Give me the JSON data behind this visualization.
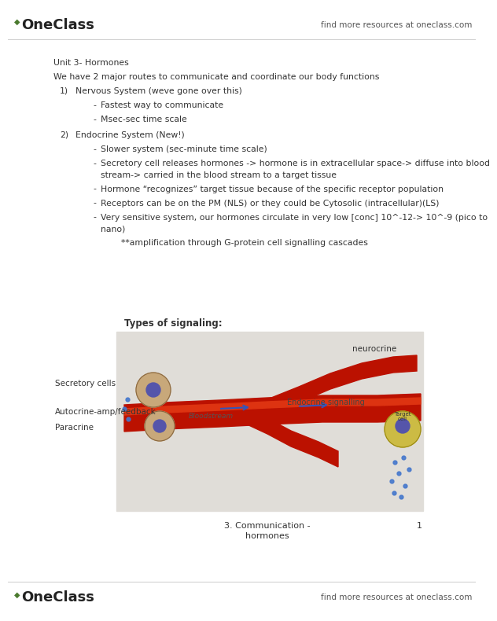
{
  "bg_color": "#ffffff",
  "header_logo_text": "OneClass",
  "header_right_text": "find more resources at oneclass.com",
  "footer_logo_text": "OneClass",
  "footer_right_text": "find more resources at oneclass.com",
  "logo_green": "#4a7a2e",
  "title": "Unit 3- Hormones",
  "intro": "We have 2 major routes to communicate and coordinate our body functions",
  "item1_num": "1)",
  "item1_label": "Nervous System (weve gone over this)",
  "item1_bullets": [
    "Fastest way to communicate",
    "Msec-sec time scale"
  ],
  "item2_num": "2)",
  "item2_label": "Endocrine System (New!)",
  "item2_bullets": [
    "Slower system (sec-minute time scale)",
    "Secretory cell releases hormones -> hormone is in extracellular space-> diffuse into blood",
    "stream-> carried in the blood stream to a target tissue",
    "Hormone “recognizes” target tissue because of the specific receptor population",
    "Receptors can be on the PM (NLS) or they could be Cytosolic (intracellular)(LS)",
    "Very sensitive system, our hormones circulate in very low [conc] 10^-12-> 10^-9 (pico to",
    "nano)",
    "    **amplification through G-protein cell signalling cascades"
  ],
  "diagram_title": "Types of signaling:",
  "diagram_caption_line1": "3. Communication -",
  "diagram_caption_line2": "hormones",
  "diagram_page_num": "1",
  "label_neurocrine": "neurocrine",
  "label_secretory": "Secretory cells",
  "label_autocrine": "Autocrine-amp/feedback",
  "label_paracrine": "Paracrine",
  "label_bloodstream": "Bloodstream",
  "label_endocrine": "Endocrine signalling",
  "text_color": "#333333",
  "vessel_color": "#bb1100",
  "vessel_highlight": "#dd3311",
  "cell_color": "#c8a87a",
  "nucleus_color": "#5555aa",
  "target_cell_color": "#ccbb44",
  "blue_dot_color": "#4477cc",
  "box_color": "#e0ddd8"
}
